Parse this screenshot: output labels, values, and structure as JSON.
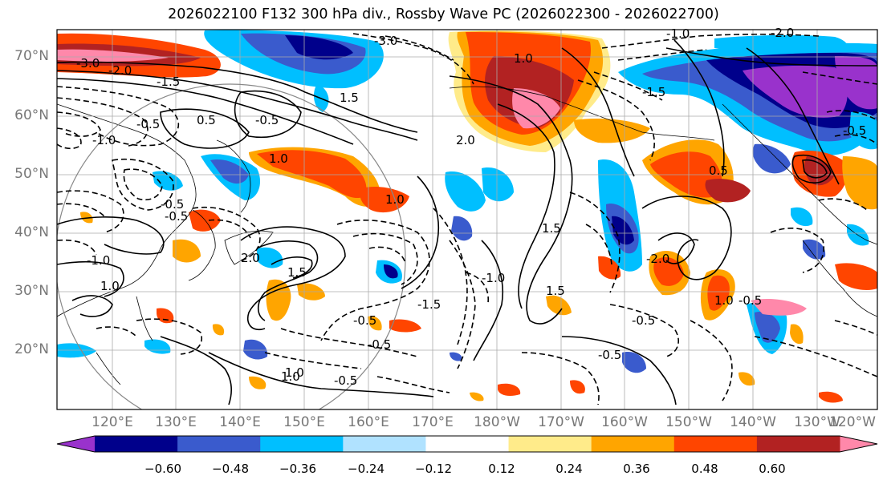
{
  "title": "2026022100 F132 300 hPa div., Rossby Wave PC (2026022300 - 2026022700)",
  "lat_labels": [
    "70°N",
    "60°N",
    "50°N",
    "40°N",
    "30°N",
    "20°N"
  ],
  "lon_labels": [
    "120°E",
    "130°E",
    "140°E",
    "150°E",
    "160°E",
    "170°E",
    "180°W",
    "170°W",
    "160°W",
    "150°W",
    "140°W",
    "130°W",
    "120°W"
  ],
  "contour_labels": [
    "-3.0",
    "-3.0",
    "-2.0",
    "-2.0",
    "-1.5",
    "-1.0",
    "-1.0",
    "1.0",
    "1.0",
    "1.5",
    "-0.5",
    "-0.5",
    "-0.5",
    "-0.5",
    "-0.5",
    "0.5",
    "1.0",
    "1.5",
    "2.0",
    "-1.5",
    "-0.5",
    "-0.5",
    "1.0",
    "-1.5",
    "1.5",
    "-1.0",
    "2.0",
    "-0.5",
    "-1.0",
    "1.0",
    "1.5",
    "-0.5",
    "-0.5",
    "0.5",
    "-2.0",
    "1.0",
    "-0.5",
    "1.0"
  ],
  "colorbar": {
    "ticks": [
      "−0.60",
      "−0.48",
      "−0.36",
      "−0.24",
      "−0.12",
      "0.12",
      "0.24",
      "0.36",
      "0.48",
      "0.60"
    ],
    "colors": [
      "#9932CC",
      "#00008B",
      "#3A5BCD",
      "#00BFFF",
      "#B0E2FF",
      "#FFFFFF",
      "#FFEB8A",
      "#FFA500",
      "#FF4500",
      "#B22222",
      "#FF88AA"
    ]
  },
  "colors": {
    "purple": "#9932CC",
    "navy": "#00008B",
    "blue": "#3A5BCD",
    "sky": "#00BFFF",
    "pale": "#B0E2FF",
    "yellow": "#FFEB8A",
    "orange": "#FFA500",
    "red": "#FF4500",
    "darkred": "#B22222",
    "pink": "#FF88AA"
  }
}
